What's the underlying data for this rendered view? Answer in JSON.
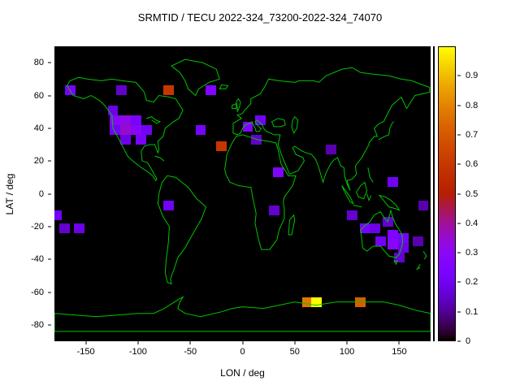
{
  "figure": {
    "title": "SRMTID / TECU 2022-324_73200-2022-324_74070"
  },
  "axes": {
    "xlabel": "LON / deg",
    "ylabel": "LAT / deg",
    "xlim": [
      -180,
      180
    ],
    "ylim": [
      -90,
      90
    ],
    "xtick_labels": [
      "-150",
      "-100",
      "-50",
      "0",
      "50",
      "100",
      "150"
    ],
    "ytick_labels": [
      "80",
      "60",
      "40",
      "20",
      "0",
      "-20",
      "-40",
      "-60",
      "-80"
    ]
  },
  "colorbar": {
    "range": [
      0,
      1
    ],
    "tick_labels": [
      "0",
      "0.1",
      "0.2",
      "0.3",
      "0.4",
      "0.5",
      "0.6",
      "0.7",
      "0.8",
      "0.9"
    ],
    "palette": "black-violet-red-yellow (gnuplot pm3d)"
  },
  "map": {
    "background_color": "#000000",
    "coastline_color": "#00c400"
  },
  "chart_data": {
    "type": "heatmap",
    "title": "SRMTID / TECU 2022-324_73200-2022-324_74070",
    "xlabel": "LON / deg",
    "ylabel": "LAT / deg",
    "xlim": [
      -180,
      180
    ],
    "ylim": [
      -90,
      90
    ],
    "colorbar_range": [
      0,
      1
    ],
    "grid": false,
    "cell_size_deg": {
      "lon": 10,
      "lat": 6
    },
    "points": [
      {
        "lon": -165,
        "lat": 63,
        "value": 0.22
      },
      {
        "lon": -116,
        "lat": 63,
        "value": 0.15
      },
      {
        "lon": -71,
        "lat": 63,
        "value": 0.6
      },
      {
        "lon": -30,
        "lat": 63,
        "value": 0.25
      },
      {
        "lon": -124,
        "lat": 51,
        "value": 0.18
      },
      {
        "lon": -122,
        "lat": 45,
        "value": 0.28
      },
      {
        "lon": -112,
        "lat": 45,
        "value": 0.32
      },
      {
        "lon": -102,
        "lat": 45,
        "value": 0.22
      },
      {
        "lon": -122,
        "lat": 39,
        "value": 0.2
      },
      {
        "lon": -112,
        "lat": 39,
        "value": 0.35
      },
      {
        "lon": -102,
        "lat": 39,
        "value": 0.28
      },
      {
        "lon": -92,
        "lat": 39,
        "value": 0.2
      },
      {
        "lon": -112,
        "lat": 33,
        "value": 0.18
      },
      {
        "lon": -97,
        "lat": 33,
        "value": 0.22
      },
      {
        "lon": -40,
        "lat": 39,
        "value": 0.22
      },
      {
        "lon": -20,
        "lat": 29,
        "value": 0.6
      },
      {
        "lon": 5,
        "lat": 41,
        "value": 0.25
      },
      {
        "lon": 17,
        "lat": 45,
        "value": 0.2
      },
      {
        "lon": 13,
        "lat": 33,
        "value": 0.15
      },
      {
        "lon": 34,
        "lat": 13,
        "value": 0.25
      },
      {
        "lon": 85,
        "lat": 27,
        "value": 0.12
      },
      {
        "lon": 144,
        "lat": 7,
        "value": 0.2
      },
      {
        "lon": -178,
        "lat": -13,
        "value": 0.2
      },
      {
        "lon": -170,
        "lat": -21,
        "value": 0.15
      },
      {
        "lon": -156,
        "lat": -21,
        "value": 0.18
      },
      {
        "lon": -71,
        "lat": -7,
        "value": 0.2
      },
      {
        "lon": 30,
        "lat": -10,
        "value": 0.15
      },
      {
        "lon": 105,
        "lat": -13,
        "value": 0.15
      },
      {
        "lon": 117,
        "lat": -21,
        "value": 0.22
      },
      {
        "lon": 127,
        "lat": -21,
        "value": 0.18
      },
      {
        "lon": 139,
        "lat": -17,
        "value": 0.15
      },
      {
        "lon": 144,
        "lat": -25,
        "value": 0.25
      },
      {
        "lon": 132,
        "lat": -29,
        "value": 0.2
      },
      {
        "lon": 144,
        "lat": -31,
        "value": 0.28
      },
      {
        "lon": 154,
        "lat": -27,
        "value": 0.22
      },
      {
        "lon": 154,
        "lat": -33,
        "value": 0.18
      },
      {
        "lon": 150,
        "lat": -39,
        "value": 0.15
      },
      {
        "lon": 168,
        "lat": -29,
        "value": 0.12
      },
      {
        "lon": 173,
        "lat": -7,
        "value": 0.12
      },
      {
        "lon": 62,
        "lat": -66,
        "value": 0.78
      },
      {
        "lon": 71,
        "lat": -66,
        "value": 1.0
      },
      {
        "lon": 113,
        "lat": -66,
        "value": 0.72
      }
    ]
  }
}
